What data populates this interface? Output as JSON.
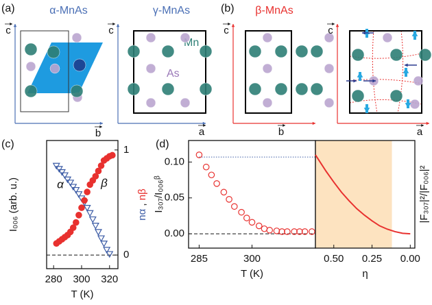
{
  "diagrams": [
    {
      "label": "(a)",
      "phases": [
        "α-MnAs",
        "γ-MnAs"
      ],
      "vectors": [
        "c",
        "b",
        "c",
        "a"
      ],
      "atoms": [
        "Mn",
        "As"
      ]
    },
    {
      "label": "(b)",
      "phases": [
        "β-MnAs"
      ],
      "vectors": [
        "c",
        "b",
        "c",
        "a"
      ]
    }
  ],
  "chart_data": [
    {
      "type": "scatter",
      "label": "(c)",
      "xlabel": "T (K)",
      "ylabel": "I₀₀₆ (arb. u.)",
      "y2label": [
        "nα",
        " , ",
        "nβ"
      ],
      "xlim": [
        275,
        326
      ],
      "xticks": [
        280,
        300,
        320
      ],
      "y2lim": [
        -0.13,
        1.09
      ],
      "y2ticks": [
        0,
        1
      ],
      "hline": 0,
      "series": [
        {
          "name": "α",
          "color": "#3b5ba5",
          "marker": "triangle-open",
          "axis": "y2",
          "x": [
            282,
            284,
            286,
            288,
            290,
            292,
            294,
            296,
            298,
            300,
            302,
            304,
            306,
            308,
            310,
            312,
            314,
            316,
            318,
            320
          ],
          "values": [
            0.85,
            0.82,
            0.79,
            0.76,
            0.72,
            0.69,
            0.65,
            0.62,
            0.58,
            0.54,
            0.5,
            0.45,
            0.4,
            0.34,
            0.28,
            0.22,
            0.16,
            0.11,
            0.05,
            0.01
          ]
        },
        {
          "name": "β",
          "color": "#e8312f",
          "marker": "circle",
          "axis": "y2",
          "x": [
            282,
            284,
            286,
            288,
            290,
            292,
            294,
            296,
            298,
            300,
            302,
            304,
            306,
            308,
            310,
            312,
            314,
            316,
            318,
            320,
            322
          ],
          "values": [
            0.11,
            0.13,
            0.15,
            0.17,
            0.19,
            0.22,
            0.26,
            0.31,
            0.38,
            0.45,
            0.52,
            0.6,
            0.67,
            0.71,
            0.75,
            0.8,
            0.85,
            0.9,
            0.92,
            0.94,
            0.95
          ]
        }
      ]
    },
    {
      "type": "scatter",
      "label": "(d)",
      "xlabel": "T (K)",
      "ylabel": "I₃₀₇/I₀₀₆ᵝ",
      "xlim": [
        282,
        318
      ],
      "xticks": [
        285,
        300
      ],
      "ylim": [
        -0.02,
        0.13
      ],
      "yticks": [
        {
          "value": 0,
          "label": "0.00"
        },
        {
          "value": 0.05,
          "label": "0.05"
        },
        {
          "value": 0.1,
          "label": "0.10"
        }
      ],
      "hline": 0,
      "ref_line": 0.107,
      "series": [
        {
          "name": "I₃₀₇",
          "color": "#e8312f",
          "marker": "circle-open",
          "x": [
            285,
            287,
            288.5,
            290,
            292,
            293.5,
            295,
            297,
            298.5,
            300,
            302,
            303.5,
            305,
            307,
            308.5,
            310,
            312,
            313.5,
            315,
            317
          ],
          "values": [
            0.11,
            0.093,
            0.082,
            0.07,
            0.058,
            0.048,
            0.038,
            0.03,
            0.022,
            0.016,
            0.011,
            0.007,
            0.005,
            0.004,
            0.003,
            0.003,
            0.003,
            0.003,
            0.003,
            0.003
          ]
        }
      ]
    },
    {
      "type": "line",
      "xlabel": "η",
      "ylabel": "|F₃₀₇|²/|F₀₀₆|²",
      "xlim": [
        0.62,
        -0.03
      ],
      "xticks": [
        {
          "value": 0.5,
          "label": "0.50"
        },
        {
          "value": 0.25,
          "label": "0.25"
        },
        {
          "value": 0,
          "label": "0.00"
        }
      ],
      "ylim": [
        -0.02,
        0.13
      ],
      "shade": [
        0.62,
        0.12
      ],
      "shade_color": "#fde3c0",
      "series": [
        {
          "name": "|F₃₀₇|²",
          "color": "#e8312f",
          "x": [
            0.62,
            0.55,
            0.5,
            0.45,
            0.4,
            0.35,
            0.3,
            0.25,
            0.2,
            0.15,
            0.1,
            0.05,
            0
          ],
          "values": [
            0.11,
            0.087,
            0.072,
            0.058,
            0.046,
            0.035,
            0.026,
            0.018,
            0.011,
            0.0064,
            0.003,
            0.0007,
            0
          ]
        }
      ]
    }
  ]
}
